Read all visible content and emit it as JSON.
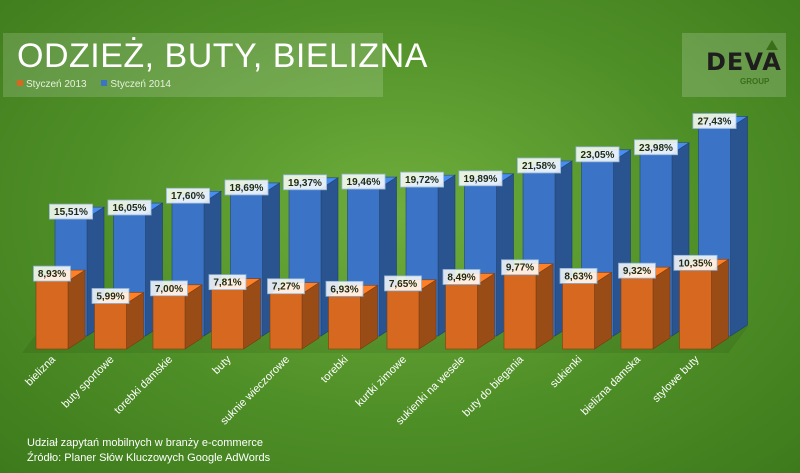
{
  "header": {
    "title": "ODZIEŻ, BUTY, BIELIZNA",
    "logo_text": "DEVA",
    "logo_subtext": "GROUP"
  },
  "legend": {
    "items": [
      {
        "label": "Styczeń 2013",
        "color": "#d6691f"
      },
      {
        "label": "Styczeń 2014",
        "color": "#3b74c6"
      }
    ]
  },
  "footer": {
    "line1": "Udział zapytań mobilnych w branży e-commerce",
    "line2": "Źródło: Planer Słów Kluczowych Google AdWords"
  },
  "chart_data": {
    "type": "bar",
    "categories": [
      "bielizna",
      "buty sportowe",
      "torebki damskie",
      "buty",
      "suknie wieczorowe",
      "torebki",
      "kurtki zimowe",
      "sukienki na wesele",
      "buty do biegania",
      "sukienki",
      "bielizna damska",
      "stylowe buty"
    ],
    "series": [
      {
        "name": "Styczeń 2013",
        "color": "#d6691f",
        "values": [
          8.93,
          5.99,
          7.0,
          7.81,
          7.27,
          6.93,
          7.65,
          8.49,
          9.77,
          8.63,
          9.32,
          10.35
        ],
        "labels": [
          "8,93%",
          "5,99%",
          "7,00%",
          "7,81%",
          "7,27%",
          "6,93%",
          "7,65%",
          "8,49%",
          "9,77%",
          "8,63%",
          "9,32%",
          "10,35%"
        ]
      },
      {
        "name": "Styczeń 2014",
        "color": "#3b74c6",
        "values": [
          15.51,
          16.05,
          17.6,
          18.69,
          19.37,
          19.46,
          19.72,
          19.89,
          21.58,
          23.05,
          23.98,
          27.43
        ],
        "labels": [
          "15,51%",
          "16,05%",
          "17,60%",
          "18,69%",
          "19,37%",
          "19,46%",
          "19,72%",
          "19,89%",
          "21,58%",
          "23,05%",
          "23,98%",
          "27,43%"
        ]
      }
    ],
    "unit": "%",
    "grid": false,
    "legend_position": "top-left"
  }
}
